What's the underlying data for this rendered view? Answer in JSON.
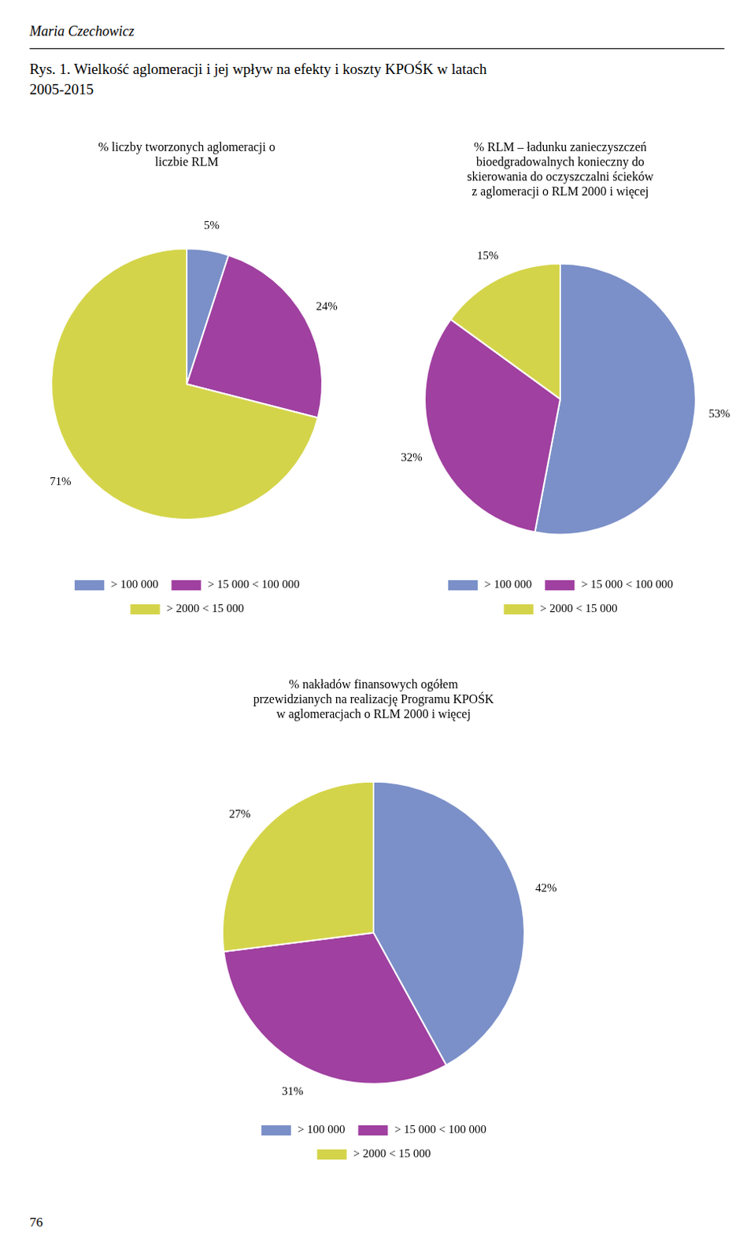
{
  "title": "Rys. 1. Wielkość aglomeracji i jej wpływ na efekty i koszty KPOŚK w latach\n2005-2015",
  "annotations": [
    "Maria Czechowicz",
    "76"
  ],
  "chart_data": [
    {
      "type": "pie",
      "title": "% liczby tworzonych aglomeracji o\nliczbie RLM",
      "categories": [
        "> 100 000",
        "> 15 000 < 100 000",
        "> 2000 < 15 000"
      ],
      "values": [
        5,
        24,
        71
      ],
      "value_labels": [
        "5%",
        "24%",
        "71%"
      ],
      "colors": [
        "#7B90C8",
        "#A040A0",
        "#D4D44A"
      ],
      "data_labels": true,
      "legend": "bottom"
    },
    {
      "type": "pie",
      "title": "% RLM – ładunku zanieczyszczeń\nbioedgradowalnych konieczny do\nskierowania do oczyszczalni ścieków\nz aglomeracji o RLM 2000 i więcej",
      "categories": [
        "> 100 000",
        "> 15 000 < 100 000",
        "> 2000 < 15 000"
      ],
      "values": [
        53,
        32,
        15
      ],
      "value_labels": [
        "53%",
        "32%",
        "15%"
      ],
      "colors": [
        "#7B90C8",
        "#A040A0",
        "#D4D44A"
      ],
      "data_labels": true,
      "legend": "bottom"
    },
    {
      "type": "pie",
      "title": "% nakładów finansowych ogółem\nprzewidzianych na realizację Programu KPOŚK\nw aglomeracjach o RLM 2000 i więcej",
      "categories": [
        "> 100 000",
        "> 15 000 < 100 000",
        "> 2000 < 15 000"
      ],
      "values": [
        42,
        31,
        27
      ],
      "value_labels": [
        "42%",
        "31%",
        "27%"
      ],
      "colors": [
        "#7B90C8",
        "#A040A0",
        "#D4D44A"
      ],
      "data_labels": true,
      "legend": "bottom"
    }
  ]
}
